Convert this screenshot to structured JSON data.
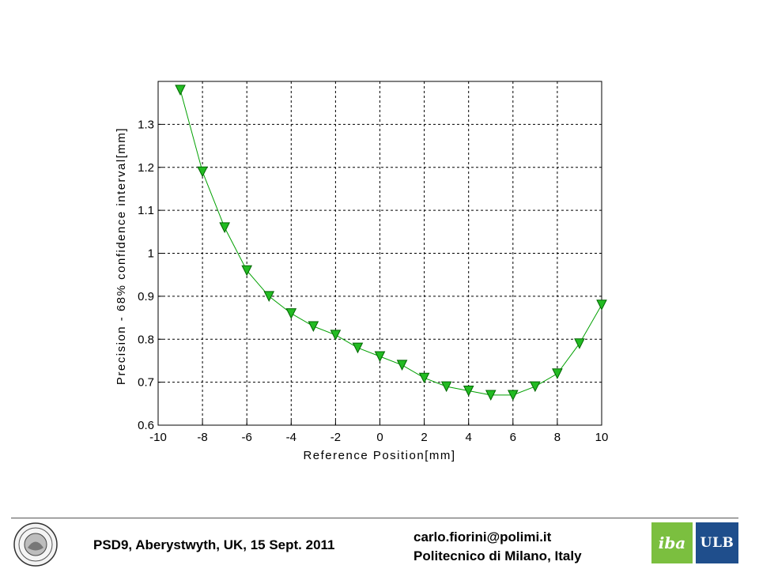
{
  "chart_data": {
    "type": "line",
    "title": "",
    "xlabel": "Reference Position[mm]",
    "ylabel": "Precision - 68% confidence interval[mm]",
    "xlim": [
      -10,
      10
    ],
    "ylim": [
      0.6,
      1.4
    ],
    "xticks": [
      -10,
      -8,
      -6,
      -4,
      -2,
      0,
      2,
      4,
      6,
      8,
      10
    ],
    "yticks": [
      0.6,
      0.7,
      0.8,
      0.9,
      1,
      1.1,
      1.2,
      1.3
    ],
    "grid": true,
    "series": [
      {
        "marker": "triangle-down",
        "color": "#00a000",
        "marker_fill": "#22bb22",
        "x": [
          -9,
          -8,
          -7,
          -6,
          -5,
          -4,
          -3,
          -2,
          -1,
          0,
          1,
          2,
          3,
          4,
          5,
          6,
          7,
          8,
          9,
          10
        ],
        "y": [
          1.38,
          1.19,
          1.06,
          0.96,
          0.9,
          0.86,
          0.83,
          0.81,
          0.78,
          0.76,
          0.74,
          0.71,
          0.69,
          0.68,
          0.67,
          0.67,
          0.69,
          0.72,
          0.79,
          0.88
        ]
      }
    ]
  },
  "footer": {
    "conference": "PSD9, Aberystwyth, UK, 15 Sept. 2011",
    "email": "carlo.fiorini@polimi.it",
    "institution": "Politecnico di Milano, Italy"
  },
  "logos": {
    "iba": "iba",
    "ulb": "ULB"
  }
}
